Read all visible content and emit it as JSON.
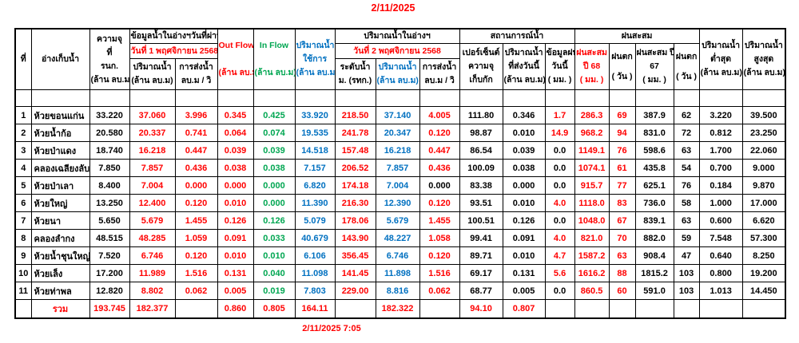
{
  "page": {
    "title_date": "2/11/2025",
    "footer_timestamp": "2/11/2025 7:05"
  },
  "colors": {
    "red": "#FF0000",
    "green": "#00A651",
    "blue": "#0070C0",
    "black": "#000000",
    "background": "#FFFFFF"
  },
  "header": {
    "no": "ที่",
    "reservoir": "อ่างเก็บน้ำ",
    "capacity_lines": [
      "ความจุ",
      "ที่",
      "รนก.",
      "(ล้าน ลบ.ม)"
    ],
    "prev_group": "ข้อมูลน้ำในอ่างฯวันที่ผ่านมา",
    "prev_date": "วันที่ 1 พฤศจิกายน 2568",
    "prev_volume_lines": [
      "ปริมาณน้ำ",
      "(ล้าน ลบ.ม)"
    ],
    "prev_discharge_lines": [
      "การส่งน้ำ",
      "ลบ.ม / วิ"
    ],
    "outflow_lines": [
      "Out Flow",
      "(ล้าน ลบ.ม)"
    ],
    "inflow_lines": [
      "In Flow",
      "(ล้าน ลบ.ม)"
    ],
    "usable_lines": [
      "ปริมาณน้ำ",
      "ใช้การ",
      "(ล้าน ลบ.ม)"
    ],
    "today_group": "ปริมาณน้ำในอ่างฯ",
    "today_date": "วันที่ 2 พฤศจิกายน 2568",
    "level_lines": [
      "ระดับน้ำ",
      "ม. (รทก.)"
    ],
    "today_volume_lines": [
      "ปริมาณน้ำ",
      "(ล้าน ลบ.ม)"
    ],
    "today_discharge_lines": [
      "การส่งน้ำ",
      "ลบ.ม / วิ"
    ],
    "situation_group": "สถานการณ์น้ำ",
    "percent_lines": [
      "เปอร์เซ็นต์",
      "ความจุ",
      "เก็บกัก"
    ],
    "sent_today_lines": [
      "ปริมาณน้ำ",
      "ที่ส่งวันนี้",
      "(ล้าน ลบ.ม)"
    ],
    "rain_today_lines": [
      "ข้อมูลฝน",
      "วันนี้",
      "( มม. )"
    ],
    "rain_group": "ฝนสะสม",
    "rain68_lines": [
      "ฝนสะสม",
      "ปี 68",
      "( มม. )"
    ],
    "raindays68_lines": [
      "ฝนตก",
      "( วัน )"
    ],
    "rain67_lines": [
      "ฝนสะสม ปี",
      "67",
      "( มม. )"
    ],
    "raindays67_lines": [
      "ฝนตก",
      "( วัน )"
    ],
    "min_lines": [
      "ปริมาณน้ำ",
      "ต่ำสุด",
      "(ล้าน ลบ.ม)"
    ],
    "max_lines": [
      "ปริมาณน้ำ",
      "สูงสุด",
      "(ล้าน ลบ.ม)"
    ]
  },
  "table": {
    "column_keys": [
      "capacity",
      "volume-prev",
      "discharge-prev",
      "outflow",
      "inflow",
      "usable-volume",
      "water-level",
      "volume-today",
      "discharge-today",
      "percent-capacity",
      "sent-today",
      "rain-today",
      "rain-accum-68",
      "rain-days-68",
      "rain-accum-67",
      "rain-days-67",
      "volume-min",
      "volume-max"
    ],
    "color_legend": {
      "k": "black",
      "r": "red",
      "g": "green",
      "b": "blue"
    },
    "rows": [
      {
        "no": "1",
        "name": "ห้วยขอนแก่น",
        "cells": [
          [
            "33.220",
            "k"
          ],
          [
            "37.060",
            "r"
          ],
          [
            "3.996",
            "r"
          ],
          [
            "0.345",
            "r"
          ],
          [
            "0.425",
            "g"
          ],
          [
            "33.920",
            "b"
          ],
          [
            "218.50",
            "r"
          ],
          [
            "37.140",
            "b"
          ],
          [
            "4.005",
            "r"
          ],
          [
            "111.80",
            "k"
          ],
          [
            "0.346",
            "k"
          ],
          [
            "1.7",
            "r"
          ],
          [
            "286.3",
            "r"
          ],
          [
            "69",
            "r"
          ],
          [
            "387.9",
            "k"
          ],
          [
            "62",
            "k"
          ],
          [
            "3.220",
            "k"
          ],
          [
            "39.500",
            "k"
          ]
        ]
      },
      {
        "no": "2",
        "name": "ห้วยน้ำก้อ",
        "cells": [
          [
            "20.580",
            "k"
          ],
          [
            "20.337",
            "r"
          ],
          [
            "0.741",
            "r"
          ],
          [
            "0.064",
            "r"
          ],
          [
            "0.074",
            "g"
          ],
          [
            "19.535",
            "b"
          ],
          [
            "241.78",
            "r"
          ],
          [
            "20.347",
            "b"
          ],
          [
            "0.120",
            "r"
          ],
          [
            "98.87",
            "k"
          ],
          [
            "0.010",
            "k"
          ],
          [
            "14.9",
            "r"
          ],
          [
            "968.2",
            "r"
          ],
          [
            "94",
            "r"
          ],
          [
            "831.0",
            "k"
          ],
          [
            "72",
            "k"
          ],
          [
            "0.812",
            "k"
          ],
          [
            "23.250",
            "k"
          ]
        ]
      },
      {
        "no": "3",
        "name": "ห้วยป่าแดง",
        "cells": [
          [
            "18.740",
            "k"
          ],
          [
            "16.218",
            "r"
          ],
          [
            "0.447",
            "r"
          ],
          [
            "0.039",
            "r"
          ],
          [
            "0.039",
            "g"
          ],
          [
            "14.518",
            "b"
          ],
          [
            "157.48",
            "r"
          ],
          [
            "16.218",
            "b"
          ],
          [
            "0.447",
            "r"
          ],
          [
            "86.54",
            "k"
          ],
          [
            "0.039",
            "k"
          ],
          [
            "0.0",
            "k"
          ],
          [
            "1149.1",
            "r"
          ],
          [
            "76",
            "r"
          ],
          [
            "598.6",
            "k"
          ],
          [
            "63",
            "k"
          ],
          [
            "1.700",
            "k"
          ],
          [
            "22.060",
            "k"
          ]
        ]
      },
      {
        "no": "4",
        "name": "คลองเฉลียงลับ",
        "cells": [
          [
            "7.850",
            "k"
          ],
          [
            "7.857",
            "r"
          ],
          [
            "0.436",
            "r"
          ],
          [
            "0.038",
            "r"
          ],
          [
            "0.038",
            "g"
          ],
          [
            "7.157",
            "b"
          ],
          [
            "206.52",
            "r"
          ],
          [
            "7.857",
            "b"
          ],
          [
            "0.436",
            "r"
          ],
          [
            "100.09",
            "k"
          ],
          [
            "0.038",
            "k"
          ],
          [
            "0.0",
            "k"
          ],
          [
            "1074.1",
            "r"
          ],
          [
            "61",
            "r"
          ],
          [
            "435.8",
            "k"
          ],
          [
            "54",
            "k"
          ],
          [
            "0.700",
            "k"
          ],
          [
            "9.000",
            "k"
          ]
        ]
      },
      {
        "no": "5",
        "name": "ห้วยป่าเลา",
        "cells": [
          [
            "8.400",
            "k"
          ],
          [
            "7.004",
            "r"
          ],
          [
            "0.000",
            "r"
          ],
          [
            "0.000",
            "r"
          ],
          [
            "0.000",
            "g"
          ],
          [
            "6.820",
            "b"
          ],
          [
            "174.18",
            "r"
          ],
          [
            "7.004",
            "b"
          ],
          [
            "0.000",
            "k"
          ],
          [
            "83.38",
            "k"
          ],
          [
            "0.000",
            "k"
          ],
          [
            "0.0",
            "k"
          ],
          [
            "915.7",
            "r"
          ],
          [
            "77",
            "r"
          ],
          [
            "625.1",
            "k"
          ],
          [
            "76",
            "k"
          ],
          [
            "0.184",
            "k"
          ],
          [
            "9.870",
            "k"
          ]
        ]
      },
      {
        "no": "6",
        "name": "ห้วยใหญ่",
        "cells": [
          [
            "13.250",
            "k"
          ],
          [
            "12.400",
            "r"
          ],
          [
            "0.120",
            "r"
          ],
          [
            "0.010",
            "r"
          ],
          [
            "0.000",
            "g"
          ],
          [
            "11.390",
            "b"
          ],
          [
            "216.30",
            "r"
          ],
          [
            "12.390",
            "b"
          ],
          [
            "0.120",
            "r"
          ],
          [
            "93.51",
            "k"
          ],
          [
            "0.010",
            "k"
          ],
          [
            "4.0",
            "r"
          ],
          [
            "1118.0",
            "r"
          ],
          [
            "83",
            "r"
          ],
          [
            "736.0",
            "k"
          ],
          [
            "58",
            "k"
          ],
          [
            "1.000",
            "k"
          ],
          [
            "17.000",
            "k"
          ]
        ]
      },
      {
        "no": "7",
        "name": "ห้วยนา",
        "cells": [
          [
            "5.650",
            "k"
          ],
          [
            "5.679",
            "r"
          ],
          [
            "1.455",
            "r"
          ],
          [
            "0.126",
            "r"
          ],
          [
            "0.126",
            "g"
          ],
          [
            "5.079",
            "b"
          ],
          [
            "178.06",
            "r"
          ],
          [
            "5.679",
            "b"
          ],
          [
            "1.455",
            "r"
          ],
          [
            "100.51",
            "k"
          ],
          [
            "0.126",
            "k"
          ],
          [
            "0.0",
            "k"
          ],
          [
            "1048.0",
            "r"
          ],
          [
            "67",
            "r"
          ],
          [
            "839.1",
            "k"
          ],
          [
            "63",
            "k"
          ],
          [
            "0.600",
            "k"
          ],
          [
            "6.620",
            "k"
          ]
        ]
      },
      {
        "no": "8",
        "name": "คลองลำกง",
        "cells": [
          [
            "48.515",
            "k"
          ],
          [
            "48.285",
            "r"
          ],
          [
            "1.059",
            "r"
          ],
          [
            "0.091",
            "r"
          ],
          [
            "0.033",
            "g"
          ],
          [
            "40.679",
            "b"
          ],
          [
            "143.90",
            "r"
          ],
          [
            "48.227",
            "b"
          ],
          [
            "1.058",
            "r"
          ],
          [
            "99.41",
            "k"
          ],
          [
            "0.091",
            "k"
          ],
          [
            "4.0",
            "r"
          ],
          [
            "821.0",
            "r"
          ],
          [
            "70",
            "r"
          ],
          [
            "882.0",
            "k"
          ],
          [
            "59",
            "k"
          ],
          [
            "7.548",
            "k"
          ],
          [
            "57.300",
            "k"
          ]
        ]
      },
      {
        "no": "9",
        "name": "ห้วยน้ำชุนใหญ่",
        "cells": [
          [
            "7.520",
            "k"
          ],
          [
            "6.746",
            "r"
          ],
          [
            "0.120",
            "r"
          ],
          [
            "0.010",
            "r"
          ],
          [
            "0.010",
            "g"
          ],
          [
            "6.106",
            "b"
          ],
          [
            "356.45",
            "r"
          ],
          [
            "6.746",
            "b"
          ],
          [
            "0.120",
            "r"
          ],
          [
            "89.71",
            "k"
          ],
          [
            "0.010",
            "k"
          ],
          [
            "4.7",
            "r"
          ],
          [
            "1587.2",
            "r"
          ],
          [
            "63",
            "r"
          ],
          [
            "908.4",
            "k"
          ],
          [
            "47",
            "k"
          ],
          [
            "0.640",
            "k"
          ],
          [
            "8.250",
            "k"
          ]
        ]
      },
      {
        "no": "10",
        "name": "ห้วยเล็ง",
        "cells": [
          [
            "17.200",
            "k"
          ],
          [
            "11.989",
            "r"
          ],
          [
            "1.516",
            "r"
          ],
          [
            "0.131",
            "r"
          ],
          [
            "0.040",
            "g"
          ],
          [
            "11.098",
            "b"
          ],
          [
            "141.45",
            "r"
          ],
          [
            "11.898",
            "b"
          ],
          [
            "1.516",
            "r"
          ],
          [
            "69.17",
            "k"
          ],
          [
            "0.131",
            "k"
          ],
          [
            "5.6",
            "r"
          ],
          [
            "1616.2",
            "r"
          ],
          [
            "88",
            "r"
          ],
          [
            "1815.2",
            "k"
          ],
          [
            "103",
            "k"
          ],
          [
            "0.800",
            "k"
          ],
          [
            "19.200",
            "k"
          ]
        ]
      },
      {
        "no": "11",
        "name": "ห้วยท่าพล",
        "cells": [
          [
            "12.820",
            "k"
          ],
          [
            "8.802",
            "r"
          ],
          [
            "0.062",
            "r"
          ],
          [
            "0.005",
            "r"
          ],
          [
            "0.019",
            "g"
          ],
          [
            "7.803",
            "b"
          ],
          [
            "229.00",
            "r"
          ],
          [
            "8.816",
            "b"
          ],
          [
            "0.062",
            "r"
          ],
          [
            "68.77",
            "k"
          ],
          [
            "0.005",
            "k"
          ],
          [
            "0.0",
            "k"
          ],
          [
            "860.5",
            "r"
          ],
          [
            "60",
            "r"
          ],
          [
            "591.0",
            "k"
          ],
          [
            "103",
            "k"
          ],
          [
            "1.013",
            "k"
          ],
          [
            "14.450",
            "k"
          ]
        ]
      }
    ],
    "total": {
      "label": "รวม",
      "cells": [
        [
          "193.745",
          "r"
        ],
        [
          "182.377",
          "r"
        ],
        [
          "",
          "k"
        ],
        [
          "0.860",
          "r"
        ],
        [
          "0.805",
          "r"
        ],
        [
          "164.11",
          "r"
        ],
        [
          "",
          "k"
        ],
        [
          "182.322",
          "r"
        ],
        [
          "",
          "k"
        ],
        [
          "94.10",
          "r"
        ],
        [
          "0.807",
          "r"
        ],
        [
          "",
          "k"
        ],
        [
          "",
          "k"
        ],
        [
          "",
          "k"
        ],
        [
          "",
          "k"
        ],
        [
          "",
          "k"
        ],
        [
          "",
          "k"
        ],
        [
          "",
          "k"
        ]
      ]
    }
  }
}
